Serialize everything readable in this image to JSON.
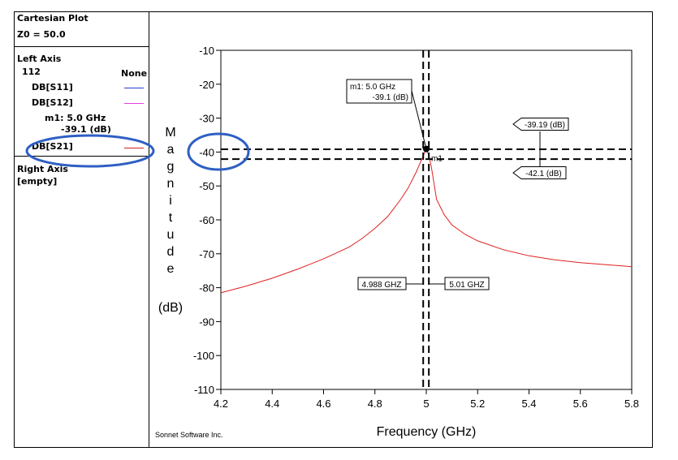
{
  "legend": {
    "title": "Cartesian Plot",
    "z0": "Z0 = 50.0",
    "left_axis_label": "Left Axis",
    "left_axis_id": "112",
    "left_axis_none": "None",
    "items": [
      {
        "label": "DB[S11]",
        "color": "#2a3fd0"
      },
      {
        "label": "DB[S12]",
        "color": "#e040e0"
      }
    ],
    "marker_line1": "m1:  5.0 GHz",
    "marker_line2": "-39.1  (dB)",
    "s21_label": "DB[S21]",
    "s21_color": "#cc2020",
    "right_axis_label": "Right Axis",
    "right_axis_value": "[empty]"
  },
  "chart_data": {
    "type": "line",
    "xlabel": "Frequency (GHz)",
    "ylabel_letters": [
      "M",
      "a",
      "g",
      "n",
      "i",
      "t",
      "u",
      "d",
      "e"
    ],
    "ylabel_unit": "(dB)",
    "xlim": [
      4.2,
      5.8
    ],
    "ylim": [
      -110,
      -10
    ],
    "xticks": [
      "4.2",
      "4.4",
      "4.6",
      "4.8",
      "5",
      "5.2",
      "5.4",
      "5.6",
      "5.8"
    ],
    "yticks": [
      "-10",
      "-20",
      "-30",
      "-40",
      "-50",
      "-60",
      "-70",
      "-80",
      "-90",
      "-100",
      "-110"
    ],
    "series": [
      {
        "name": "DB[S21]",
        "color": "#e02020",
        "x": [
          4.2,
          4.3,
          4.4,
          4.5,
          4.6,
          4.7,
          4.75,
          4.8,
          4.85,
          4.9,
          4.93,
          4.96,
          4.98,
          4.99,
          5.0,
          5.01,
          5.02,
          5.04,
          5.07,
          5.1,
          5.15,
          5.2,
          5.3,
          5.4,
          5.5,
          5.6,
          5.7,
          5.8
        ],
        "y": [
          -81.5,
          -79.5,
          -77.2,
          -74.5,
          -71.5,
          -68,
          -65.5,
          -62.5,
          -59,
          -54,
          -50.5,
          -46,
          -42.5,
          -40.8,
          -39.1,
          -41,
          -44.5,
          -54,
          -58.5,
          -61.5,
          -64.2,
          -66.2,
          -68.8,
          -70.6,
          -71.8,
          -72.6,
          -73.2,
          -73.8
        ]
      }
    ],
    "marker": {
      "label": "m1",
      "x": 5.0,
      "y": -39.1,
      "text1": "m1: 5.0 GHz",
      "text2": "-39.1  (dB)"
    },
    "hlines": [
      {
        "y": -39.19,
        "label": "-39.19  (dB)"
      },
      {
        "y": -42.1,
        "label": "-42.1  (dB)"
      }
    ],
    "vlines": [
      {
        "x": 4.988,
        "label": "4.988 GHZ"
      },
      {
        "x": 5.01,
        "label": "5.01 GHZ"
      }
    ],
    "credit": "Sonnet Software Inc."
  },
  "annotations": {
    "circle_color": "#2e5fc4"
  }
}
